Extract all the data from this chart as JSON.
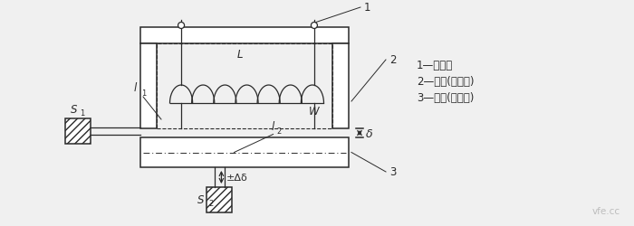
{
  "bg_color": "#f0f0f0",
  "line_color": "#2a2a2a",
  "legend_lines": [
    "1—线圈；",
    "2—铁芯(定铁芯)",
    "3—衬铁(动铁芯)"
  ],
  "label_1": "1",
  "label_2": "2",
  "label_3": "3",
  "label_l1": "l",
  "label_l1_sub": "1",
  "label_l2": "l",
  "label_l2_sub": "2",
  "label_L": "L",
  "label_W": "W",
  "label_S1": "S",
  "label_S1_sub": "1",
  "label_S2": "S",
  "label_S2_sub": "2",
  "label_delta": "δ",
  "label_pm_delta": "±Δδ"
}
